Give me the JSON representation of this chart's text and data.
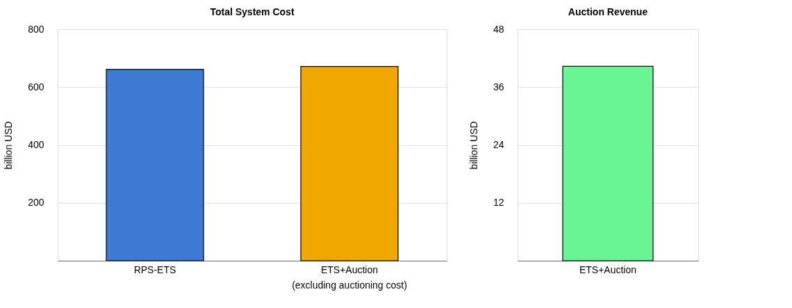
{
  "chart_data": [
    {
      "type": "bar",
      "title": "Total System Cost",
      "ylabel": "billion USD",
      "categories": [
        "RPS-ETS",
        "ETS+Auction\n(excluding auctioning cost)"
      ],
      "values": [
        661,
        671
      ],
      "colors": [
        "#3e79d3",
        "#f0a800"
      ],
      "ylim": [
        0,
        800
      ],
      "yticks": [
        200,
        400,
        600,
        800
      ],
      "grid": "y"
    },
    {
      "type": "bar",
      "title": "Auction Revenue",
      "ylabel": "billion USD",
      "categories": [
        "ETS+Auction"
      ],
      "values": [
        40.3
      ],
      "colors": [
        "#6af595"
      ],
      "ylim": [
        0,
        48
      ],
      "yticks": [
        12,
        24,
        36,
        48
      ],
      "grid": "y"
    }
  ]
}
